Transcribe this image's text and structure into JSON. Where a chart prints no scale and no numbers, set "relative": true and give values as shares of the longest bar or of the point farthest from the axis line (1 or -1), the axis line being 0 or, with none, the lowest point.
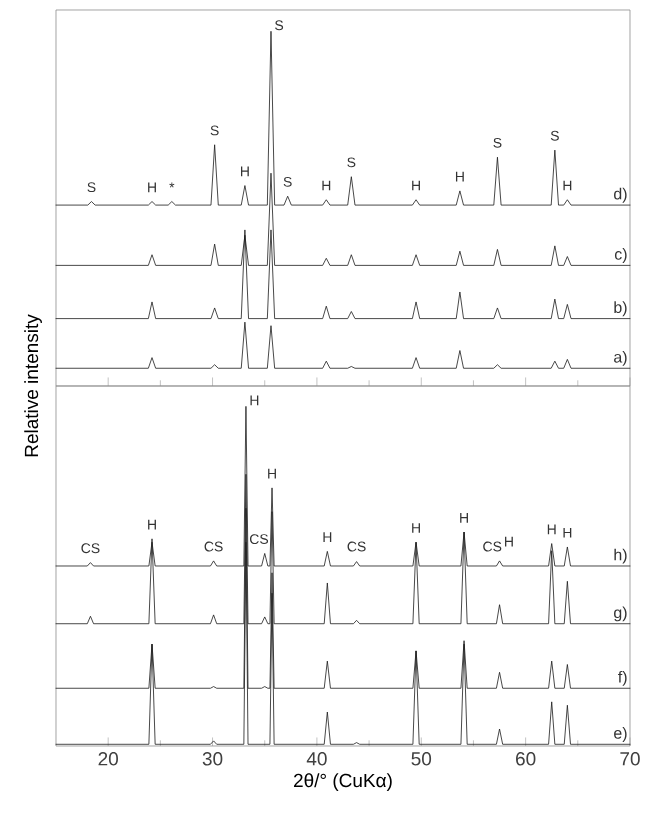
{
  "chart_data": [
    {
      "type": "line",
      "relative": true,
      "xlim": [
        15,
        70
      ],
      "xticks": [
        20,
        30,
        40,
        50,
        60,
        70
      ],
      "tick_labels": false,
      "x": [
        15,
        23.85,
        24.2,
        24.55,
        29.85,
        30.2,
        30.55,
        32.75,
        33.1,
        33.45,
        35.25,
        35.6,
        35.95,
        40.55,
        40.9,
        41.25,
        42.95,
        43.3,
        43.65,
        49.15,
        49.5,
        49.85,
        53.35,
        53.7,
        54.05,
        56.95,
        57.3,
        57.65,
        62.45,
        62.8,
        63.15,
        63.65,
        64.0,
        64.35,
        70
      ],
      "series": [
        {
          "name": "d)",
          "color": "#1a1a1a",
          "x": [
            15,
            18.05,
            18.4,
            18.75,
            23.85,
            24.2,
            24.55,
            25.75,
            26.1,
            26.45,
            29.85,
            30.2,
            30.55,
            32.75,
            33.1,
            33.45,
            35.25,
            35.6,
            35.95,
            36.85,
            37.2,
            37.55,
            40.55,
            40.9,
            41.25,
            42.95,
            43.3,
            43.65,
            49.15,
            49.5,
            49.85,
            53.35,
            53.7,
            54.05,
            56.95,
            57.3,
            57.65,
            62.45,
            62.8,
            63.15,
            63.65,
            64.0,
            64.35,
            70
          ],
          "values": [
            0.51,
            0.51,
            0.52,
            0.51,
            0.51,
            0.52,
            0.51,
            0.51,
            0.52,
            0.51,
            0.51,
            0.68,
            0.51,
            0.51,
            0.565,
            0.51,
            0.51,
            1.0,
            0.51,
            0.51,
            0.535,
            0.51,
            0.51,
            0.525,
            0.51,
            0.51,
            0.59,
            0.51,
            0.51,
            0.525,
            0.51,
            0.51,
            0.55,
            0.51,
            0.51,
            0.645,
            0.51,
            0.51,
            0.665,
            0.51,
            0.51,
            0.525,
            0.51,
            0.51
          ]
        },
        {
          "name": "c)",
          "color": "#1a1a1a",
          "values": [
            0.34,
            0.34,
            0.37,
            0.34,
            0.34,
            0.4,
            0.34,
            0.34,
            0.425,
            0.34,
            0.34,
            0.6,
            0.34,
            0.34,
            0.36,
            0.34,
            0.34,
            0.37,
            0.34,
            0.34,
            0.37,
            0.34,
            0.34,
            0.38,
            0.34,
            0.34,
            0.385,
            0.34,
            0.34,
            0.395,
            0.34,
            0.34,
            0.365,
            0.34,
            0.34
          ]
        },
        {
          "name": "b)",
          "color": "#1a1a1a",
          "values": [
            0.19,
            0.19,
            0.237,
            0.19,
            0.19,
            0.22,
            0.19,
            0.19,
            0.44,
            0.19,
            0.19,
            0.44,
            0.19,
            0.19,
            0.225,
            0.19,
            0.19,
            0.21,
            0.19,
            0.19,
            0.237,
            0.19,
            0.19,
            0.265,
            0.19,
            0.19,
            0.22,
            0.19,
            0.19,
            0.245,
            0.19,
            0.19,
            0.23,
            0.19,
            0.19
          ]
        },
        {
          "name": "a)",
          "color": "#1a1a1a",
          "values": [
            0.05,
            0.05,
            0.08,
            0.05,
            0.05,
            0.06,
            0.05,
            0.05,
            0.18,
            0.05,
            0.05,
            0.17,
            0.05,
            0.05,
            0.07,
            0.05,
            0.05,
            0.055,
            0.05,
            0.05,
            0.08,
            0.05,
            0.05,
            0.1,
            0.05,
            0.05,
            0.06,
            0.05,
            0.05,
            0.07,
            0.05,
            0.05,
            0.075,
            0.05,
            0.05
          ]
        }
      ],
      "annotations": [
        {
          "text": "S",
          "x": 18.4,
          "y": 0.52
        },
        {
          "text": "H",
          "x": 24.2,
          "y": 0.52
        },
        {
          "text": "*",
          "x": 26.1,
          "y": 0.52
        },
        {
          "text": "S",
          "x": 30.2,
          "y": 0.68
        },
        {
          "text": "H",
          "x": 33.1,
          "y": 0.565
        },
        {
          "text": "S",
          "x": 35.6,
          "y": 1.0
        },
        {
          "text": "S",
          "x": 37.2,
          "y": 0.535
        },
        {
          "text": "H",
          "x": 40.9,
          "y": 0.525
        },
        {
          "text": "S",
          "x": 43.3,
          "y": 0.59
        },
        {
          "text": "H",
          "x": 49.5,
          "y": 0.525
        },
        {
          "text": "H",
          "x": 53.7,
          "y": 0.55
        },
        {
          "text": "S",
          "x": 57.3,
          "y": 0.645
        },
        {
          "text": "S",
          "x": 62.8,
          "y": 0.665
        },
        {
          "text": "H",
          "x": 64.0,
          "y": 0.525
        }
      ]
    },
    {
      "type": "line",
      "relative": true,
      "xlim": [
        15,
        70
      ],
      "xticks": [
        20,
        30,
        40,
        50,
        60,
        70
      ],
      "tick_labels": "x",
      "xlabel": "2θ/° (CuKα)",
      "ylabel": "Relative intensity",
      "x": [
        15,
        18.0,
        18.3,
        18.6,
        23.9,
        24.2,
        24.5,
        29.8,
        30.1,
        30.4,
        33.0,
        33.2,
        33.4,
        34.7,
        35.0,
        35.3,
        35.5,
        35.7,
        35.9,
        40.7,
        41.0,
        41.3,
        43.5,
        43.8,
        44.1,
        49.2,
        49.5,
        49.8,
        53.8,
        54.1,
        54.4,
        57.2,
        57.5,
        57.8,
        62.2,
        62.5,
        62.8,
        63.7,
        64.0,
        64.3,
        70
      ],
      "series": [
        {
          "name": "h)",
          "color": "#1a1a1a",
          "values": [
            0.53,
            0.53,
            0.54,
            0.53,
            0.53,
            0.6,
            0.53,
            0.53,
            0.545,
            0.53,
            0.53,
            1.0,
            0.53,
            0.53,
            0.567,
            0.53,
            0.53,
            0.76,
            0.53,
            0.53,
            0.573,
            0.53,
            0.53,
            0.543,
            0.53,
            0.53,
            0.6,
            0.53,
            0.53,
            0.63,
            0.53,
            0.53,
            0.545,
            0.53,
            0.53,
            0.596,
            0.53,
            0.53,
            0.586,
            0.53,
            0.53
          ]
        },
        {
          "name": "g)",
          "color": "#1a1a1a",
          "values": [
            0.36,
            0.36,
            0.382,
            0.36,
            0.36,
            0.61,
            0.36,
            0.36,
            0.386,
            0.36,
            0.36,
            0.8,
            0.36,
            0.36,
            0.38,
            0.36,
            0.36,
            0.69,
            0.36,
            0.36,
            0.48,
            0.36,
            0.36,
            0.37,
            0.36,
            0.36,
            0.6,
            0.36,
            0.36,
            0.63,
            0.36,
            0.36,
            0.416,
            0.36,
            0.36,
            0.575,
            0.36,
            0.36,
            0.485,
            0.36,
            0.36
          ]
        },
        {
          "name": "f)",
          "color": "#1a1a1a",
          "values": [
            0.17,
            0.17,
            0.17,
            0.17,
            0.17,
            0.3,
            0.17,
            0.17,
            0.175,
            0.17,
            0.17,
            0.7,
            0.17,
            0.17,
            0.175,
            0.17,
            0.17,
            0.51,
            0.17,
            0.17,
            0.25,
            0.17,
            0.17,
            0.17,
            0.17,
            0.17,
            0.28,
            0.17,
            0.17,
            0.31,
            0.17,
            0.17,
            0.217,
            0.17,
            0.17,
            0.25,
            0.17,
            0.17,
            0.24,
            0.17,
            0.17
          ]
        },
        {
          "name": "e)",
          "color": "#1a1a1a",
          "values": [
            0.005,
            0.005,
            0.005,
            0.005,
            0.005,
            0.3,
            0.005,
            0.005,
            0.015,
            0.005,
            0.005,
            0.6,
            0.005,
            0.005,
            0.005,
            0.005,
            0.005,
            0.45,
            0.005,
            0.005,
            0.1,
            0.005,
            0.005,
            0.01,
            0.005,
            0.005,
            0.28,
            0.005,
            0.005,
            0.3,
            0.005,
            0.005,
            0.05,
            0.005,
            0.005,
            0.13,
            0.005,
            0.005,
            0.12,
            0.005,
            0.005
          ]
        }
      ],
      "annotations": [
        {
          "text": "CS",
          "x": 18.3,
          "y": 0.54
        },
        {
          "text": "H",
          "x": 24.2,
          "y": 0.61
        },
        {
          "text": "CS",
          "x": 30.1,
          "y": 0.545
        },
        {
          "text": "H",
          "x": 33.2,
          "y": 1.0
        },
        {
          "text": "CS",
          "x": 34.45,
          "y": 0.567
        },
        {
          "text": "H",
          "x": 35.7,
          "y": 0.76
        },
        {
          "text": "H",
          "x": 41.0,
          "y": 0.573
        },
        {
          "text": "CS",
          "x": 43.8,
          "y": 0.545
        },
        {
          "text": "H",
          "x": 49.5,
          "y": 0.6
        },
        {
          "text": "H",
          "x": 54.1,
          "y": 0.63
        },
        {
          "text": "CS",
          "x": 56.8,
          "y": 0.545
        },
        {
          "text": "H",
          "x": 58.4,
          "y": 0.56
        },
        {
          "text": "H",
          "x": 62.5,
          "y": 0.596
        },
        {
          "text": "H",
          "x": 64.0,
          "y": 0.586
        }
      ]
    }
  ]
}
